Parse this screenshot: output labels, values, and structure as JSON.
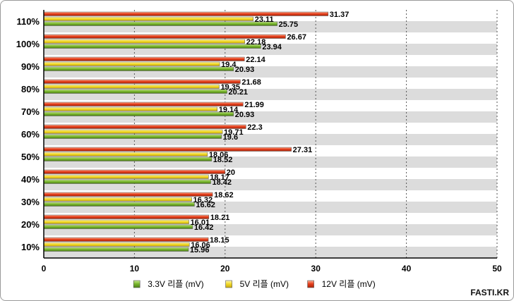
{
  "chart_data": {
    "type": "bar",
    "orientation": "horizontal",
    "categories": [
      "10%",
      "20%",
      "30%",
      "40%",
      "50%",
      "60%",
      "70%",
      "80%",
      "90%",
      "100%",
      "110%"
    ],
    "series": [
      {
        "name": "12V 리플 (mV)",
        "color": "#e8401c",
        "values": [
          18.15,
          18.21,
          18.62,
          20,
          27.31,
          22.3,
          21.99,
          21.68,
          22.14,
          26.67,
          31.37
        ]
      },
      {
        "name": "5V 리플 (mV)",
        "color": "#f3dc2a",
        "values": [
          16.06,
          16.01,
          16.32,
          18.17,
          18.06,
          19.71,
          19.14,
          19.35,
          19.4,
          22.18,
          23.11
        ]
      },
      {
        "name": "3.3V 리플 (mV)",
        "color": "#7bb82f",
        "values": [
          15.96,
          16.42,
          16.62,
          18.42,
          18.52,
          19.6,
          20.93,
          20.21,
          20.93,
          23.94,
          25.75
        ]
      }
    ],
    "legend_order": [
      "3.3V 리플 (mV)",
      "5V 리플 (mV)",
      "12V 리플 (mV)"
    ],
    "xlim": [
      0,
      50
    ],
    "xticks": [
      0,
      10,
      20,
      30,
      40,
      50
    ],
    "grid": "vertical-dotted",
    "legend_position": "bottom-center",
    "title": "",
    "xlabel": "",
    "ylabel": ""
  },
  "watermark": "FASTI.KR"
}
